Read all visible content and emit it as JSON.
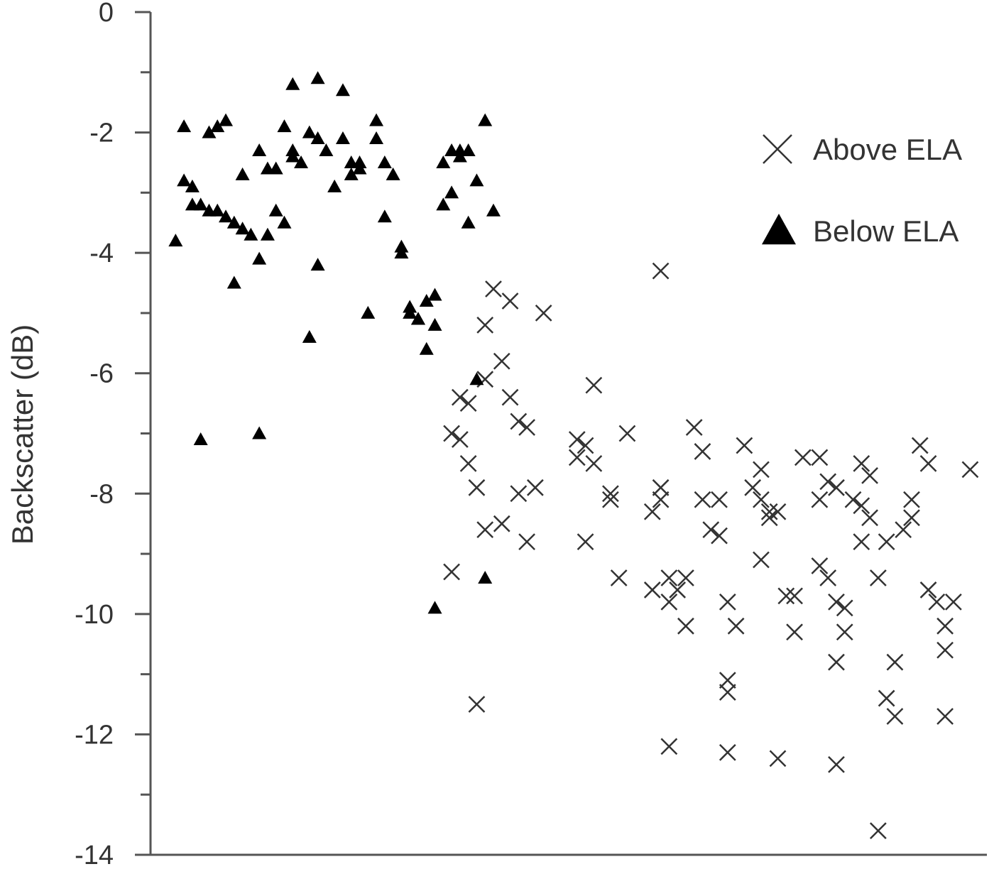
{
  "chart_data": {
    "type": "scatter",
    "ylabel": "Backscatter (dB)",
    "xlabel": "",
    "ylim": [
      -14,
      0
    ],
    "y_ticks": [
      0,
      -2,
      -4,
      -6,
      -8,
      -10,
      -12,
      -14
    ],
    "y_tick_labels": [
      "0",
      "-2",
      "-4",
      "-6",
      "-8",
      "-10",
      "-12",
      "-14"
    ],
    "x_axis_labels_shown": false,
    "xlim": [
      0,
      1
    ],
    "legend_position": "top-right",
    "grid": false,
    "series": [
      {
        "name": "Above ELA",
        "marker": "cross",
        "color": "#333333",
        "points": [
          [
            0.61,
            -4.3
          ],
          [
            0.41,
            -4.6
          ],
          [
            0.43,
            -4.8
          ],
          [
            0.4,
            -5.2
          ],
          [
            0.47,
            -5.0
          ],
          [
            0.42,
            -5.8
          ],
          [
            0.53,
            -6.2
          ],
          [
            0.4,
            -6.1
          ],
          [
            0.37,
            -6.4
          ],
          [
            0.38,
            -6.5
          ],
          [
            0.43,
            -6.4
          ],
          [
            0.44,
            -6.8
          ],
          [
            0.45,
            -6.9
          ],
          [
            0.36,
            -7.0
          ],
          [
            0.37,
            -7.1
          ],
          [
            0.51,
            -7.1
          ],
          [
            0.52,
            -7.2
          ],
          [
            0.51,
            -7.4
          ],
          [
            0.53,
            -7.5
          ],
          [
            0.57,
            -7.0
          ],
          [
            0.38,
            -7.5
          ],
          [
            0.39,
            -7.9
          ],
          [
            0.46,
            -7.9
          ],
          [
            0.44,
            -8.0
          ],
          [
            0.55,
            -8.0
          ],
          [
            0.55,
            -8.1
          ],
          [
            0.6,
            -8.3
          ],
          [
            0.61,
            -7.9
          ],
          [
            0.61,
            -8.1
          ],
          [
            0.4,
            -8.6
          ],
          [
            0.42,
            -8.5
          ],
          [
            0.45,
            -8.8
          ],
          [
            0.52,
            -8.8
          ],
          [
            0.36,
            -9.3
          ],
          [
            0.56,
            -9.4
          ],
          [
            0.6,
            -9.6
          ],
          [
            0.62,
            -9.4
          ],
          [
            0.63,
            -9.6
          ],
          [
            0.64,
            -9.4
          ],
          [
            0.62,
            -9.8
          ],
          [
            0.64,
            -10.2
          ],
          [
            0.39,
            -11.5
          ],
          [
            0.62,
            -12.2
          ],
          [
            0.65,
            -6.9
          ],
          [
            0.66,
            -7.3
          ],
          [
            0.71,
            -7.2
          ],
          [
            0.66,
            -8.1
          ],
          [
            0.68,
            -8.1
          ],
          [
            0.67,
            -8.6
          ],
          [
            0.68,
            -8.7
          ],
          [
            0.69,
            -9.8
          ],
          [
            0.7,
            -10.2
          ],
          [
            0.69,
            -11.1
          ],
          [
            0.69,
            -11.3
          ],
          [
            0.69,
            -12.3
          ],
          [
            0.73,
            -7.6
          ],
          [
            0.72,
            -7.9
          ],
          [
            0.73,
            -8.1
          ],
          [
            0.74,
            -8.3
          ],
          [
            0.75,
            -8.3
          ],
          [
            0.74,
            -8.4
          ],
          [
            0.73,
            -9.1
          ],
          [
            0.76,
            -9.7
          ],
          [
            0.77,
            -9.7
          ],
          [
            0.77,
            -10.3
          ],
          [
            0.75,
            -12.4
          ],
          [
            0.78,
            -7.4
          ],
          [
            0.8,
            -7.4
          ],
          [
            0.8,
            -8.1
          ],
          [
            0.81,
            -7.8
          ],
          [
            0.82,
            -7.9
          ],
          [
            0.8,
            -9.2
          ],
          [
            0.81,
            -9.4
          ],
          [
            0.82,
            -9.8
          ],
          [
            0.83,
            -9.9
          ],
          [
            0.83,
            -10.3
          ],
          [
            0.82,
            -10.8
          ],
          [
            0.82,
            -12.5
          ],
          [
            0.84,
            -8.1
          ],
          [
            0.85,
            -7.5
          ],
          [
            0.86,
            -7.7
          ],
          [
            0.85,
            -8.2
          ],
          [
            0.86,
            -8.4
          ],
          [
            0.85,
            -8.8
          ],
          [
            0.87,
            -9.4
          ],
          [
            0.88,
            -8.8
          ],
          [
            0.88,
            -11.4
          ],
          [
            0.89,
            -11.7
          ],
          [
            0.89,
            -10.8
          ],
          [
            0.87,
            -13.6
          ],
          [
            0.91,
            -8.1
          ],
          [
            0.91,
            -8.4
          ],
          [
            0.9,
            -8.6
          ],
          [
            0.92,
            -7.2
          ],
          [
            0.93,
            -7.5
          ],
          [
            0.93,
            -9.6
          ],
          [
            0.94,
            -9.8
          ],
          [
            0.95,
            -10.2
          ],
          [
            0.95,
            -10.6
          ],
          [
            0.95,
            -11.7
          ],
          [
            0.96,
            -9.8
          ],
          [
            0.98,
            -7.6
          ]
        ]
      },
      {
        "name": "Below ELA",
        "marker": "triangle",
        "color": "#000000",
        "points": [
          [
            0.03,
            -3.8
          ],
          [
            0.04,
            -2.8
          ],
          [
            0.04,
            -1.9
          ],
          [
            0.05,
            -2.9
          ],
          [
            0.05,
            -3.2
          ],
          [
            0.06,
            -3.2
          ],
          [
            0.06,
            -7.1
          ],
          [
            0.07,
            -3.3
          ],
          [
            0.07,
            -2.0
          ],
          [
            0.08,
            -3.3
          ],
          [
            0.08,
            -1.9
          ],
          [
            0.09,
            -3.4
          ],
          [
            0.09,
            -1.8
          ],
          [
            0.1,
            -3.5
          ],
          [
            0.1,
            -4.5
          ],
          [
            0.11,
            -2.7
          ],
          [
            0.11,
            -3.6
          ],
          [
            0.12,
            -3.7
          ],
          [
            0.13,
            -4.1
          ],
          [
            0.13,
            -2.3
          ],
          [
            0.13,
            -7.0
          ],
          [
            0.14,
            -3.7
          ],
          [
            0.14,
            -2.6
          ],
          [
            0.15,
            -3.3
          ],
          [
            0.15,
            -2.6
          ],
          [
            0.16,
            -3.5
          ],
          [
            0.16,
            -1.9
          ],
          [
            0.17,
            -1.2
          ],
          [
            0.17,
            -2.3
          ],
          [
            0.17,
            -2.4
          ],
          [
            0.18,
            -2.5
          ],
          [
            0.19,
            -2.0
          ],
          [
            0.19,
            -5.4
          ],
          [
            0.2,
            -1.1
          ],
          [
            0.2,
            -2.1
          ],
          [
            0.2,
            -4.2
          ],
          [
            0.21,
            -2.3
          ],
          [
            0.22,
            -2.9
          ],
          [
            0.23,
            -1.3
          ],
          [
            0.23,
            -2.1
          ],
          [
            0.24,
            -2.5
          ],
          [
            0.24,
            -2.7
          ],
          [
            0.25,
            -2.6
          ],
          [
            0.25,
            -2.5
          ],
          [
            0.26,
            -5.0
          ],
          [
            0.27,
            -1.8
          ],
          [
            0.27,
            -2.1
          ],
          [
            0.28,
            -2.5
          ],
          [
            0.28,
            -3.4
          ],
          [
            0.29,
            -2.7
          ],
          [
            0.3,
            -3.9
          ],
          [
            0.3,
            -4.0
          ],
          [
            0.31,
            -4.9
          ],
          [
            0.31,
            -5.0
          ],
          [
            0.32,
            -5.1
          ],
          [
            0.32,
            -5.1
          ],
          [
            0.33,
            -5.6
          ],
          [
            0.33,
            -4.8
          ],
          [
            0.34,
            -4.7
          ],
          [
            0.34,
            -5.2
          ],
          [
            0.34,
            -9.9
          ],
          [
            0.35,
            -3.2
          ],
          [
            0.35,
            -2.5
          ],
          [
            0.36,
            -2.3
          ],
          [
            0.36,
            -3.0
          ],
          [
            0.37,
            -2.3
          ],
          [
            0.37,
            -2.4
          ],
          [
            0.38,
            -3.5
          ],
          [
            0.38,
            -2.3
          ],
          [
            0.39,
            -2.8
          ],
          [
            0.39,
            -6.1
          ],
          [
            0.4,
            -1.8
          ],
          [
            0.4,
            -9.4
          ],
          [
            0.41,
            -3.3
          ]
        ]
      }
    ]
  }
}
